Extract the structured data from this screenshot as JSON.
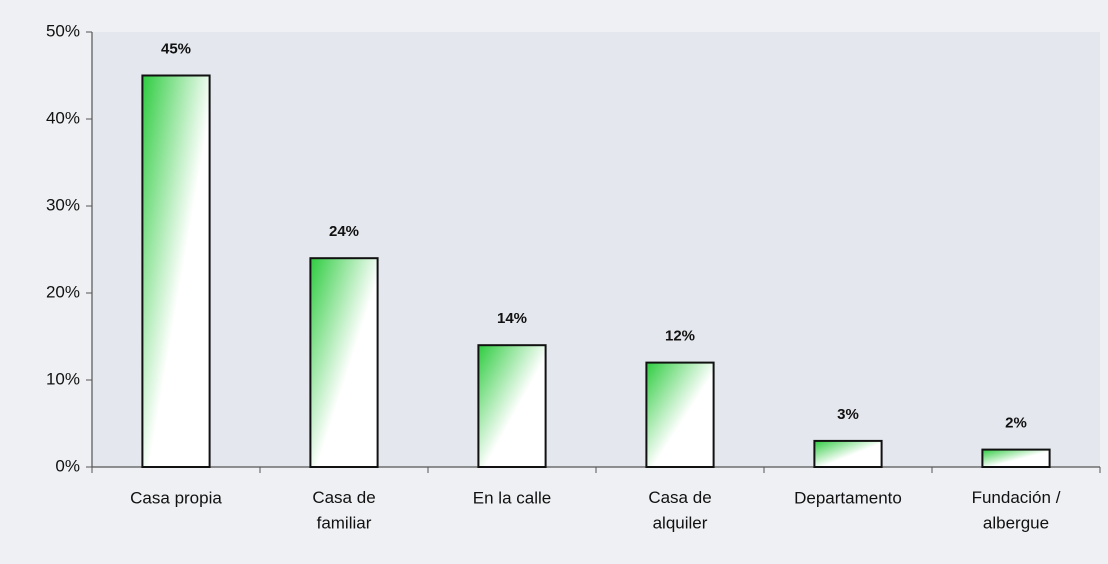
{
  "chart_data": {
    "type": "bar",
    "categories": [
      "Casa propia",
      "Casa de\nfamiliar",
      "En la calle",
      "Casa de\nalquiler",
      "Departamento",
      "Fundación /\nalbergue"
    ],
    "values": [
      45,
      24,
      14,
      12,
      3,
      2
    ],
    "value_labels": [
      "45%",
      "24%",
      "14%",
      "12%",
      "3%",
      "2%"
    ],
    "color": "#2ecc40",
    "ylim": [
      0,
      50
    ],
    "yticks": [
      {
        "value": 0,
        "label": "0%"
      },
      {
        "value": 10,
        "label": "10%"
      },
      {
        "value": 20,
        "label": "20%"
      },
      {
        "value": 30,
        "label": "30%"
      },
      {
        "value": 40,
        "label": "40%"
      },
      {
        "value": 50,
        "label": "50%"
      }
    ],
    "grid": false
  }
}
